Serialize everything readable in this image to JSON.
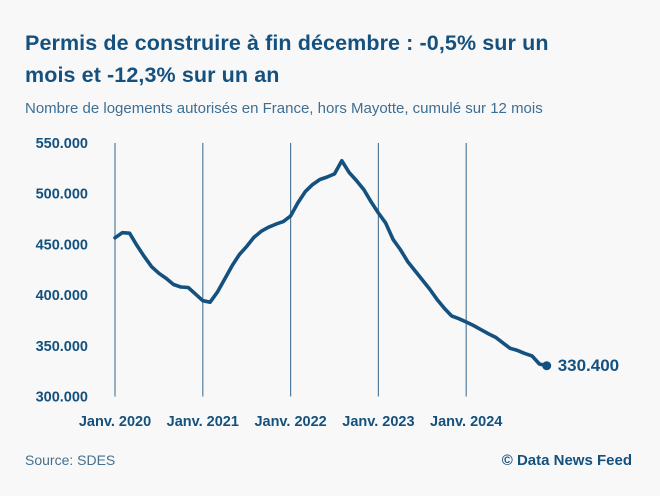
{
  "header": {
    "title": "Permis de construire à fin décembre : -0,5% sur un mois et -12,3% sur un an",
    "subtitle": "Nombre de logements autorisés en France, hors Mayotte, cumulé sur 12 mois"
  },
  "footer": {
    "source": "Source: SDES",
    "credit": "© Data News Feed"
  },
  "colors": {
    "background": "#f8f8f8",
    "accent_navy": "#14517e",
    "steel_blue_text": "#3d6f94",
    "gridline": "#36688f"
  },
  "chart_data": {
    "type": "line",
    "title": "Permis de construire à fin décembre : -0,5% sur un mois et -12,3% sur un an",
    "subtitle": "Nombre de logements autorisés en France, hors Mayotte, cumulé sur 12 mois",
    "values_start": "Janv. 2020",
    "values_frequency": "monthly",
    "values": [
      456500,
      461500,
      461000,
      449000,
      438000,
      428000,
      421500,
      416500,
      410500,
      408000,
      407500,
      401000,
      394500,
      393000,
      403000,
      416000,
      429000,
      440000,
      448000,
      457000,
      463000,
      467000,
      470000,
      472500,
      478000,
      491000,
      502000,
      509000,
      514000,
      516500,
      519500,
      532500,
      521000,
      513000,
      504000,
      492000,
      481000,
      471000,
      455000,
      445000,
      433000,
      424000,
      415000,
      406000,
      396000,
      387000,
      379500,
      376700,
      373500,
      370000,
      366000,
      362000,
      358500,
      353000,
      347500,
      345500,
      342500,
      340000,
      332100,
      330400
    ],
    "x_tick_labels": [
      "Janv. 2020",
      "Janv. 2021",
      "Janv. 2022",
      "Janv. 2023",
      "Janv. 2024"
    ],
    "x_ticks_every_months": 12,
    "y_tick_labels": [
      "550.000",
      "500.000",
      "450.000",
      "400.000",
      "350.000",
      "300.000"
    ],
    "y_ticks": [
      550000,
      500000,
      450000,
      400000,
      350000,
      300000
    ],
    "ylim": [
      300000,
      550000
    ],
    "grid": "vertical-yearly-only",
    "legend": "none",
    "end_value": 330400,
    "end_label": "330.400"
  }
}
